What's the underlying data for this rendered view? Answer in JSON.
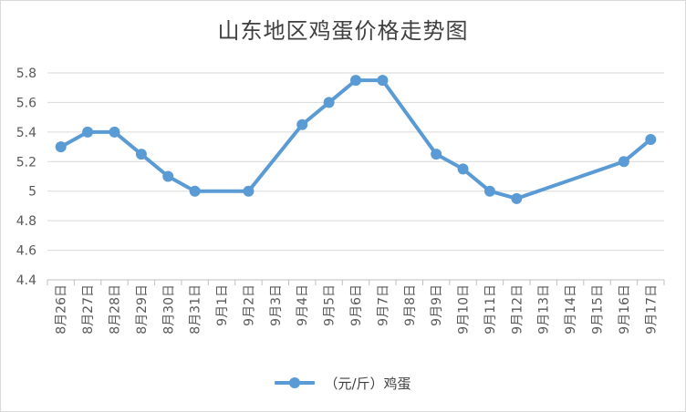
{
  "chart_data": {
    "type": "line",
    "title": "山东地区鸡蛋价格走势图",
    "categories": [
      "8月26日",
      "8月27日",
      "8月28日",
      "8月29日",
      "8月30日",
      "8月31日",
      "9月1日",
      "9月2日",
      "9月3日",
      "9月4日",
      "9月5日",
      "9月6日",
      "9月7日",
      "9月8日",
      "9月9日",
      "9月10日",
      "9月11日",
      "9月12日",
      "9月13日",
      "9月14日",
      "9月15日",
      "9月16日",
      "9月17日"
    ],
    "yticks": [
      "4.4",
      "4.6",
      "4.8",
      "5",
      "5.2",
      "5.4",
      "5.6",
      "5.8"
    ],
    "ylim": [
      4.4,
      5.8
    ],
    "grid": true,
    "legend_position": "bottom",
    "series": [
      {
        "name": "（元/斤）鸡蛋",
        "color": "#5b9bd5",
        "values": [
          5.3,
          5.4,
          5.4,
          5.25,
          5.1,
          5.0,
          null,
          5.0,
          null,
          5.45,
          5.6,
          5.75,
          5.75,
          null,
          5.25,
          5.15,
          5.0,
          4.95,
          null,
          null,
          null,
          5.2,
          5.35
        ]
      }
    ]
  }
}
